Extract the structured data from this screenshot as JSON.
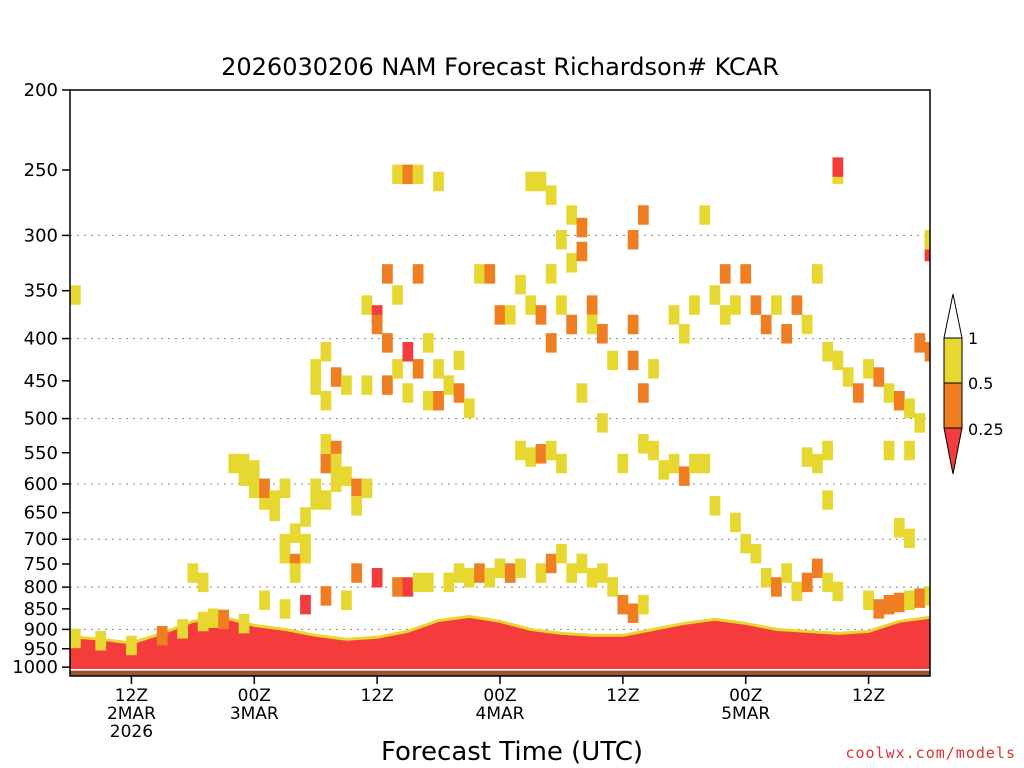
{
  "chart_data": {
    "type": "heatmap",
    "title": "2026030206 NAM Forecast Richardson# KCAR",
    "xlabel": "Forecast Time (UTC)",
    "ylabel": "",
    "credit": "coolwx.com/models",
    "x_range_hours": [
      6,
      90
    ],
    "y_range_hpa": [
      200,
      1025
    ],
    "y_ticks": [
      200,
      250,
      300,
      350,
      400,
      450,
      500,
      550,
      600,
      650,
      700,
      750,
      800,
      850,
      900,
      950,
      1000
    ],
    "dotted_gridlines_hpa": [
      300,
      400,
      500,
      600,
      700,
      800,
      900
    ],
    "x_ticks": [
      {
        "hour": 12,
        "label": "12Z",
        "date": "2MAR",
        "year": "2026"
      },
      {
        "hour": 24,
        "label": "00Z",
        "date": "3MAR",
        "year": ""
      },
      {
        "hour": 36,
        "label": "12Z",
        "date": "",
        "year": ""
      },
      {
        "hour": 48,
        "label": "00Z",
        "date": "4MAR",
        "year": ""
      },
      {
        "hour": 60,
        "label": "12Z",
        "date": "",
        "year": ""
      },
      {
        "hour": 72,
        "label": "00Z",
        "date": "5MAR",
        "year": ""
      },
      {
        "hour": 84,
        "label": "12Z",
        "date": "",
        "year": ""
      }
    ],
    "legend": {
      "labels": [
        "1",
        "0.5",
        "0.25"
      ],
      "bins": [
        {
          "range": "0.5-1",
          "color": "#e6d830"
        },
        {
          "range": "0.25-0.5",
          "color": "#ef7d22"
        },
        {
          "range": "<0.25",
          "color": "#f53c3c"
        }
      ],
      "top_color": "#ffffff"
    },
    "ground_color": "#9b5230",
    "boundary_layer_top_hpa": [
      [
        6,
        918
      ],
      [
        9,
        925
      ],
      [
        12,
        935
      ],
      [
        15,
        910
      ],
      [
        18,
        880
      ],
      [
        21,
        870
      ],
      [
        24,
        890
      ],
      [
        27,
        900
      ],
      [
        30,
        915
      ],
      [
        33,
        925
      ],
      [
        36,
        920
      ],
      [
        39,
        905
      ],
      [
        42,
        878
      ],
      [
        45,
        868
      ],
      [
        48,
        880
      ],
      [
        51,
        900
      ],
      [
        54,
        910
      ],
      [
        57,
        915
      ],
      [
        60,
        915
      ],
      [
        63,
        900
      ],
      [
        66,
        885
      ],
      [
        69,
        875
      ],
      [
        72,
        885
      ],
      [
        75,
        900
      ],
      [
        78,
        905
      ],
      [
        81,
        910
      ],
      [
        84,
        905
      ],
      [
        87,
        880
      ],
      [
        90,
        870
      ]
    ],
    "boundary_layer_fill": [
      {
        "below_hpa": 0,
        "color": "#f53c3c"
      }
    ],
    "cells": [
      {
        "t": 6,
        "p": 350,
        "c": 1
      },
      {
        "t": 6,
        "p": 912,
        "c": 1
      },
      {
        "t": 9,
        "p": 918,
        "c": 1
      },
      {
        "t": 12,
        "p": 930,
        "c": 1
      },
      {
        "t": 15,
        "p": 905,
        "c": 2
      },
      {
        "t": 17,
        "p": 888,
        "c": 1
      },
      {
        "t": 19,
        "p": 870,
        "c": 1
      },
      {
        "t": 20,
        "p": 862,
        "c": 1
      },
      {
        "t": 21,
        "p": 865,
        "c": 2
      },
      {
        "t": 23,
        "p": 875,
        "c": 1
      },
      {
        "t": 18,
        "p": 760,
        "c": 1
      },
      {
        "t": 19,
        "p": 780,
        "c": 1
      },
      {
        "t": 22,
        "p": 560,
        "c": 1
      },
      {
        "t": 23,
        "p": 560,
        "c": 1
      },
      {
        "t": 23,
        "p": 580,
        "c": 1
      },
      {
        "t": 24,
        "p": 570,
        "c": 1
      },
      {
        "t": 24,
        "p": 600,
        "c": 1
      },
      {
        "t": 25,
        "p": 620,
        "c": 1
      },
      {
        "t": 25,
        "p": 600,
        "c": 2
      },
      {
        "t": 26,
        "p": 640,
        "c": 1
      },
      {
        "t": 26,
        "p": 620,
        "c": 1
      },
      {
        "t": 27,
        "p": 600,
        "c": 1
      },
      {
        "t": 27,
        "p": 700,
        "c": 1
      },
      {
        "t": 28,
        "p": 680,
        "c": 1
      },
      {
        "t": 27,
        "p": 720,
        "c": 1
      },
      {
        "t": 28,
        "p": 740,
        "c": 2
      },
      {
        "t": 28,
        "p": 760,
        "c": 1
      },
      {
        "t": 29,
        "p": 720,
        "c": 1
      },
      {
        "t": 29,
        "p": 700,
        "c": 1
      },
      {
        "t": 29,
        "p": 650,
        "c": 1
      },
      {
        "t": 30,
        "p": 600,
        "c": 1
      },
      {
        "t": 30,
        "p": 620,
        "c": 1
      },
      {
        "t": 31,
        "p": 620,
        "c": 1
      },
      {
        "t": 31,
        "p": 560,
        "c": 2
      },
      {
        "t": 31,
        "p": 530,
        "c": 1
      },
      {
        "t": 32,
        "p": 540,
        "c": 2
      },
      {
        "t": 32,
        "p": 560,
        "c": 1
      },
      {
        "t": 32,
        "p": 590,
        "c": 1
      },
      {
        "t": 30,
        "p": 430,
        "c": 1
      },
      {
        "t": 30,
        "p": 450,
        "c": 1
      },
      {
        "t": 31,
        "p": 410,
        "c": 1
      },
      {
        "t": 31,
        "p": 470,
        "c": 1
      },
      {
        "t": 32,
        "p": 440,
        "c": 2
      },
      {
        "t": 33,
        "p": 450,
        "c": 1
      },
      {
        "t": 33,
        "p": 580,
        "c": 1
      },
      {
        "t": 34,
        "p": 600,
        "c": 2
      },
      {
        "t": 34,
        "p": 630,
        "c": 1
      },
      {
        "t": 35,
        "p": 600,
        "c": 1
      },
      {
        "t": 34,
        "p": 760,
        "c": 2
      },
      {
        "t": 35,
        "p": 360,
        "c": 1
      },
      {
        "t": 35,
        "p": 450,
        "c": 1
      },
      {
        "t": 36,
        "p": 370,
        "c": 3
      },
      {
        "t": 36,
        "p": 380,
        "c": 2
      },
      {
        "t": 37,
        "p": 330,
        "c": 2
      },
      {
        "t": 37,
        "p": 400,
        "c": 2
      },
      {
        "t": 37,
        "p": 450,
        "c": 2
      },
      {
        "t": 38,
        "p": 350,
        "c": 1
      },
      {
        "t": 38,
        "p": 430,
        "c": 1
      },
      {
        "t": 39,
        "p": 410,
        "c": 3
      },
      {
        "t": 39,
        "p": 460,
        "c": 1
      },
      {
        "t": 40,
        "p": 330,
        "c": 2
      },
      {
        "t": 40,
        "p": 430,
        "c": 2
      },
      {
        "t": 41,
        "p": 400,
        "c": 1
      },
      {
        "t": 41,
        "p": 470,
        "c": 1
      },
      {
        "t": 42,
        "p": 430,
        "c": 1
      },
      {
        "t": 42,
        "p": 470,
        "c": 2
      },
      {
        "t": 43,
        "p": 450,
        "c": 1
      },
      {
        "t": 44,
        "p": 460,
        "c": 2
      },
      {
        "t": 45,
        "p": 480,
        "c": 1
      },
      {
        "t": 44,
        "p": 420,
        "c": 1
      },
      {
        "t": 38,
        "p": 250,
        "c": 1
      },
      {
        "t": 39,
        "p": 250,
        "c": 2
      },
      {
        "t": 40,
        "p": 250,
        "c": 1
      },
      {
        "t": 42,
        "p": 255,
        "c": 1
      },
      {
        "t": 46,
        "p": 330,
        "c": 1
      },
      {
        "t": 47,
        "p": 330,
        "c": 2
      },
      {
        "t": 48,
        "p": 370,
        "c": 2
      },
      {
        "t": 49,
        "p": 370,
        "c": 1
      },
      {
        "t": 50,
        "p": 340,
        "c": 1
      },
      {
        "t": 51,
        "p": 360,
        "c": 1
      },
      {
        "t": 52,
        "p": 370,
        "c": 2
      },
      {
        "t": 53,
        "p": 330,
        "c": 1
      },
      {
        "t": 53,
        "p": 400,
        "c": 2
      },
      {
        "t": 54,
        "p": 300,
        "c": 1
      },
      {
        "t": 54,
        "p": 360,
        "c": 1
      },
      {
        "t": 55,
        "p": 280,
        "c": 1
      },
      {
        "t": 55,
        "p": 320,
        "c": 1
      },
      {
        "t": 55,
        "p": 380,
        "c": 2
      },
      {
        "t": 56,
        "p": 290,
        "c": 2
      },
      {
        "t": 56,
        "p": 310,
        "c": 2
      },
      {
        "t": 57,
        "p": 360,
        "c": 2
      },
      {
        "t": 57,
        "p": 380,
        "c": 1
      },
      {
        "t": 58,
        "p": 390,
        "c": 2
      },
      {
        "t": 51,
        "p": 255,
        "c": 1
      },
      {
        "t": 52,
        "p": 255,
        "c": 1
      },
      {
        "t": 53,
        "p": 265,
        "c": 1
      },
      {
        "t": 50,
        "p": 540,
        "c": 1
      },
      {
        "t": 51,
        "p": 550,
        "c": 1
      },
      {
        "t": 52,
        "p": 545,
        "c": 2
      },
      {
        "t": 53,
        "p": 540,
        "c": 1
      },
      {
        "t": 54,
        "p": 560,
        "c": 1
      },
      {
        "t": 56,
        "p": 460,
        "c": 1
      },
      {
        "t": 58,
        "p": 500,
        "c": 1
      },
      {
        "t": 59,
        "p": 420,
        "c": 1
      },
      {
        "t": 60,
        "p": 560,
        "c": 1
      },
      {
        "t": 61,
        "p": 300,
        "c": 2
      },
      {
        "t": 61,
        "p": 380,
        "c": 2
      },
      {
        "t": 61,
        "p": 420,
        "c": 2
      },
      {
        "t": 62,
        "p": 460,
        "c": 2
      },
      {
        "t": 62,
        "p": 530,
        "c": 1
      },
      {
        "t": 62,
        "p": 280,
        "c": 2
      },
      {
        "t": 63,
        "p": 540,
        "c": 1
      },
      {
        "t": 63,
        "p": 430,
        "c": 1
      },
      {
        "t": 64,
        "p": 570,
        "c": 1
      },
      {
        "t": 65,
        "p": 560,
        "c": 1
      },
      {
        "t": 66,
        "p": 580,
        "c": 2
      },
      {
        "t": 67,
        "p": 560,
        "c": 1
      },
      {
        "t": 68,
        "p": 280,
        "c": 1
      },
      {
        "t": 68,
        "p": 560,
        "c": 1
      },
      {
        "t": 69,
        "p": 630,
        "c": 1
      },
      {
        "t": 71,
        "p": 660,
        "c": 1
      },
      {
        "t": 65,
        "p": 370,
        "c": 1
      },
      {
        "t": 66,
        "p": 390,
        "c": 1
      },
      {
        "t": 67,
        "p": 360,
        "c": 1
      },
      {
        "t": 69,
        "p": 350,
        "c": 1
      },
      {
        "t": 70,
        "p": 330,
        "c": 2
      },
      {
        "t": 70,
        "p": 370,
        "c": 1
      },
      {
        "t": 71,
        "p": 360,
        "c": 1
      },
      {
        "t": 72,
        "p": 330,
        "c": 2
      },
      {
        "t": 73,
        "p": 360,
        "c": 2
      },
      {
        "t": 74,
        "p": 380,
        "c": 2
      },
      {
        "t": 75,
        "p": 360,
        "c": 1
      },
      {
        "t": 76,
        "p": 390,
        "c": 2
      },
      {
        "t": 77,
        "p": 360,
        "c": 2
      },
      {
        "t": 78,
        "p": 380,
        "c": 1
      },
      {
        "t": 79,
        "p": 330,
        "c": 1
      },
      {
        "t": 78,
        "p": 550,
        "c": 1
      },
      {
        "t": 79,
        "p": 560,
        "c": 1
      },
      {
        "t": 80,
        "p": 540,
        "c": 1
      },
      {
        "t": 80,
        "p": 620,
        "c": 1
      },
      {
        "t": 72,
        "p": 700,
        "c": 1
      },
      {
        "t": 73,
        "p": 720,
        "c": 1
      },
      {
        "t": 74,
        "p": 770,
        "c": 1
      },
      {
        "t": 75,
        "p": 790,
        "c": 2
      },
      {
        "t": 76,
        "p": 760,
        "c": 1
      },
      {
        "t": 77,
        "p": 800,
        "c": 1
      },
      {
        "t": 78,
        "p": 780,
        "c": 2
      },
      {
        "t": 79,
        "p": 750,
        "c": 2
      },
      {
        "t": 80,
        "p": 780,
        "c": 1
      },
      {
        "t": 81,
        "p": 800,
        "c": 1
      },
      {
        "t": 80,
        "p": 410,
        "c": 1
      },
      {
        "t": 81,
        "p": 420,
        "c": 1
      },
      {
        "t": 82,
        "p": 440,
        "c": 1
      },
      {
        "t": 83,
        "p": 460,
        "c": 2
      },
      {
        "t": 84,
        "p": 430,
        "c": 1
      },
      {
        "t": 85,
        "p": 440,
        "c": 2
      },
      {
        "t": 86,
        "p": 460,
        "c": 1
      },
      {
        "t": 87,
        "p": 470,
        "c": 2
      },
      {
        "t": 88,
        "p": 480,
        "c": 1
      },
      {
        "t": 89,
        "p": 500,
        "c": 1
      },
      {
        "t": 89,
        "p": 400,
        "c": 2
      },
      {
        "t": 90,
        "p": 310,
        "c": 3
      },
      {
        "t": 90,
        "p": 300,
        "c": 1
      },
      {
        "t": 90,
        "p": 410,
        "c": 2
      },
      {
        "t": 86,
        "p": 540,
        "c": 1
      },
      {
        "t": 88,
        "p": 540,
        "c": 1
      },
      {
        "t": 87,
        "p": 670,
        "c": 1
      },
      {
        "t": 88,
        "p": 690,
        "c": 1
      },
      {
        "t": 81,
        "p": 250,
        "c": 1
      },
      {
        "t": 81,
        "p": 245,
        "c": 3
      },
      {
        "t": 36,
        "p": 770,
        "c": 3
      },
      {
        "t": 38,
        "p": 790,
        "c": 2
      },
      {
        "t": 39,
        "p": 790,
        "c": 3
      },
      {
        "t": 40,
        "p": 780,
        "c": 1
      },
      {
        "t": 41,
        "p": 780,
        "c": 1
      },
      {
        "t": 43,
        "p": 780,
        "c": 1
      },
      {
        "t": 44,
        "p": 760,
        "c": 1
      },
      {
        "t": 45,
        "p": 770,
        "c": 1
      },
      {
        "t": 46,
        "p": 760,
        "c": 2
      },
      {
        "t": 47,
        "p": 770,
        "c": 1
      },
      {
        "t": 48,
        "p": 750,
        "c": 1
      },
      {
        "t": 49,
        "p": 760,
        "c": 2
      },
      {
        "t": 50,
        "p": 750,
        "c": 1
      },
      {
        "t": 52,
        "p": 760,
        "c": 1
      },
      {
        "t": 53,
        "p": 740,
        "c": 2
      },
      {
        "t": 54,
        "p": 720,
        "c": 1
      },
      {
        "t": 55,
        "p": 760,
        "c": 1
      },
      {
        "t": 56,
        "p": 740,
        "c": 1
      },
      {
        "t": 57,
        "p": 770,
        "c": 1
      },
      {
        "t": 58,
        "p": 760,
        "c": 1
      },
      {
        "t": 59,
        "p": 790,
        "c": 1
      },
      {
        "t": 60,
        "p": 830,
        "c": 2
      },
      {
        "t": 61,
        "p": 850,
        "c": 2
      },
      {
        "t": 62,
        "p": 830,
        "c": 1
      },
      {
        "t": 33,
        "p": 820,
        "c": 1
      },
      {
        "t": 31,
        "p": 810,
        "c": 2
      },
      {
        "t": 29,
        "p": 830,
        "c": 3
      },
      {
        "t": 27,
        "p": 840,
        "c": 1
      },
      {
        "t": 25,
        "p": 820,
        "c": 1
      },
      {
        "t": 84,
        "p": 820,
        "c": 1
      },
      {
        "t": 85,
        "p": 840,
        "c": 2
      },
      {
        "t": 86,
        "p": 830,
        "c": 2
      },
      {
        "t": 87,
        "p": 825,
        "c": 2
      },
      {
        "t": 88,
        "p": 820,
        "c": 1
      },
      {
        "t": 89,
        "p": 815,
        "c": 2
      },
      {
        "t": 90,
        "p": 810,
        "c": 1
      }
    ]
  }
}
